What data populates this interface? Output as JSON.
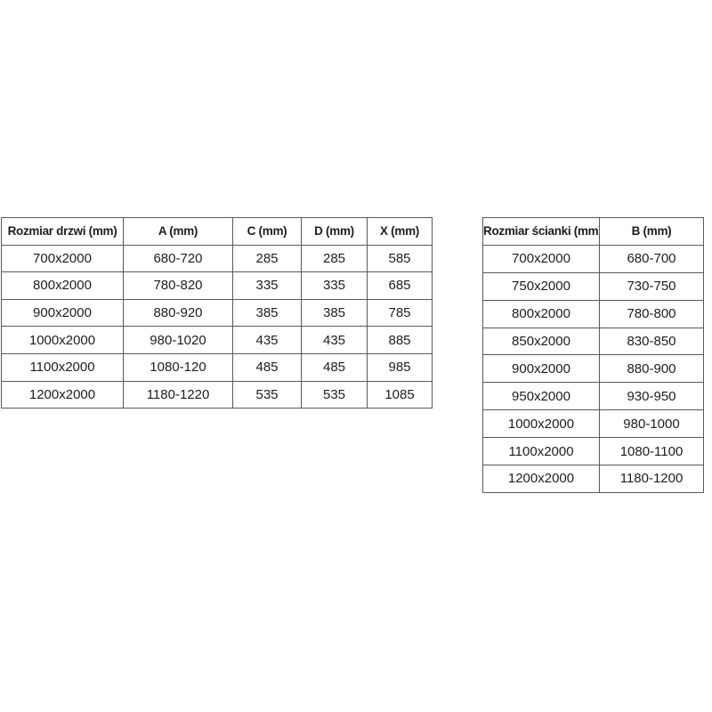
{
  "page": {
    "background_color": "#ffffff",
    "border_color": "#595959",
    "text_color": "#1d1d1d"
  },
  "tables": [
    {
      "name": "door-sizes",
      "headers": [
        "Rozmiar drzwi (mm)",
        "A (mm)",
        "C (mm)",
        "D (mm)",
        "X (mm)"
      ],
      "rows": [
        [
          "700x2000",
          "680-720",
          "285",
          "285",
          "585"
        ],
        [
          "800x2000",
          "780-820",
          "335",
          "335",
          "685"
        ],
        [
          "900x2000",
          "880-920",
          "385",
          "385",
          "785"
        ],
        [
          "1000x2000",
          "980-1020",
          "435",
          "435",
          "885"
        ],
        [
          "1100x2000",
          "1080-120",
          "485",
          "485",
          "985"
        ],
        [
          "1200x2000",
          "1180-1220",
          "535",
          "535",
          "1085"
        ]
      ]
    },
    {
      "name": "wall-sizes",
      "headers": [
        "Rozmiar ścianki (mm)",
        "B (mm)"
      ],
      "rows": [
        [
          "700x2000",
          "680-700"
        ],
        [
          "750x2000",
          "730-750"
        ],
        [
          "800x2000",
          "780-800"
        ],
        [
          "850x2000",
          "830-850"
        ],
        [
          "900x2000",
          "880-900"
        ],
        [
          "950x2000",
          "930-950"
        ],
        [
          "1000x2000",
          "980-1000"
        ],
        [
          "1100x2000",
          "1080-1100"
        ],
        [
          "1200x2000",
          "1180-1200"
        ]
      ]
    }
  ]
}
